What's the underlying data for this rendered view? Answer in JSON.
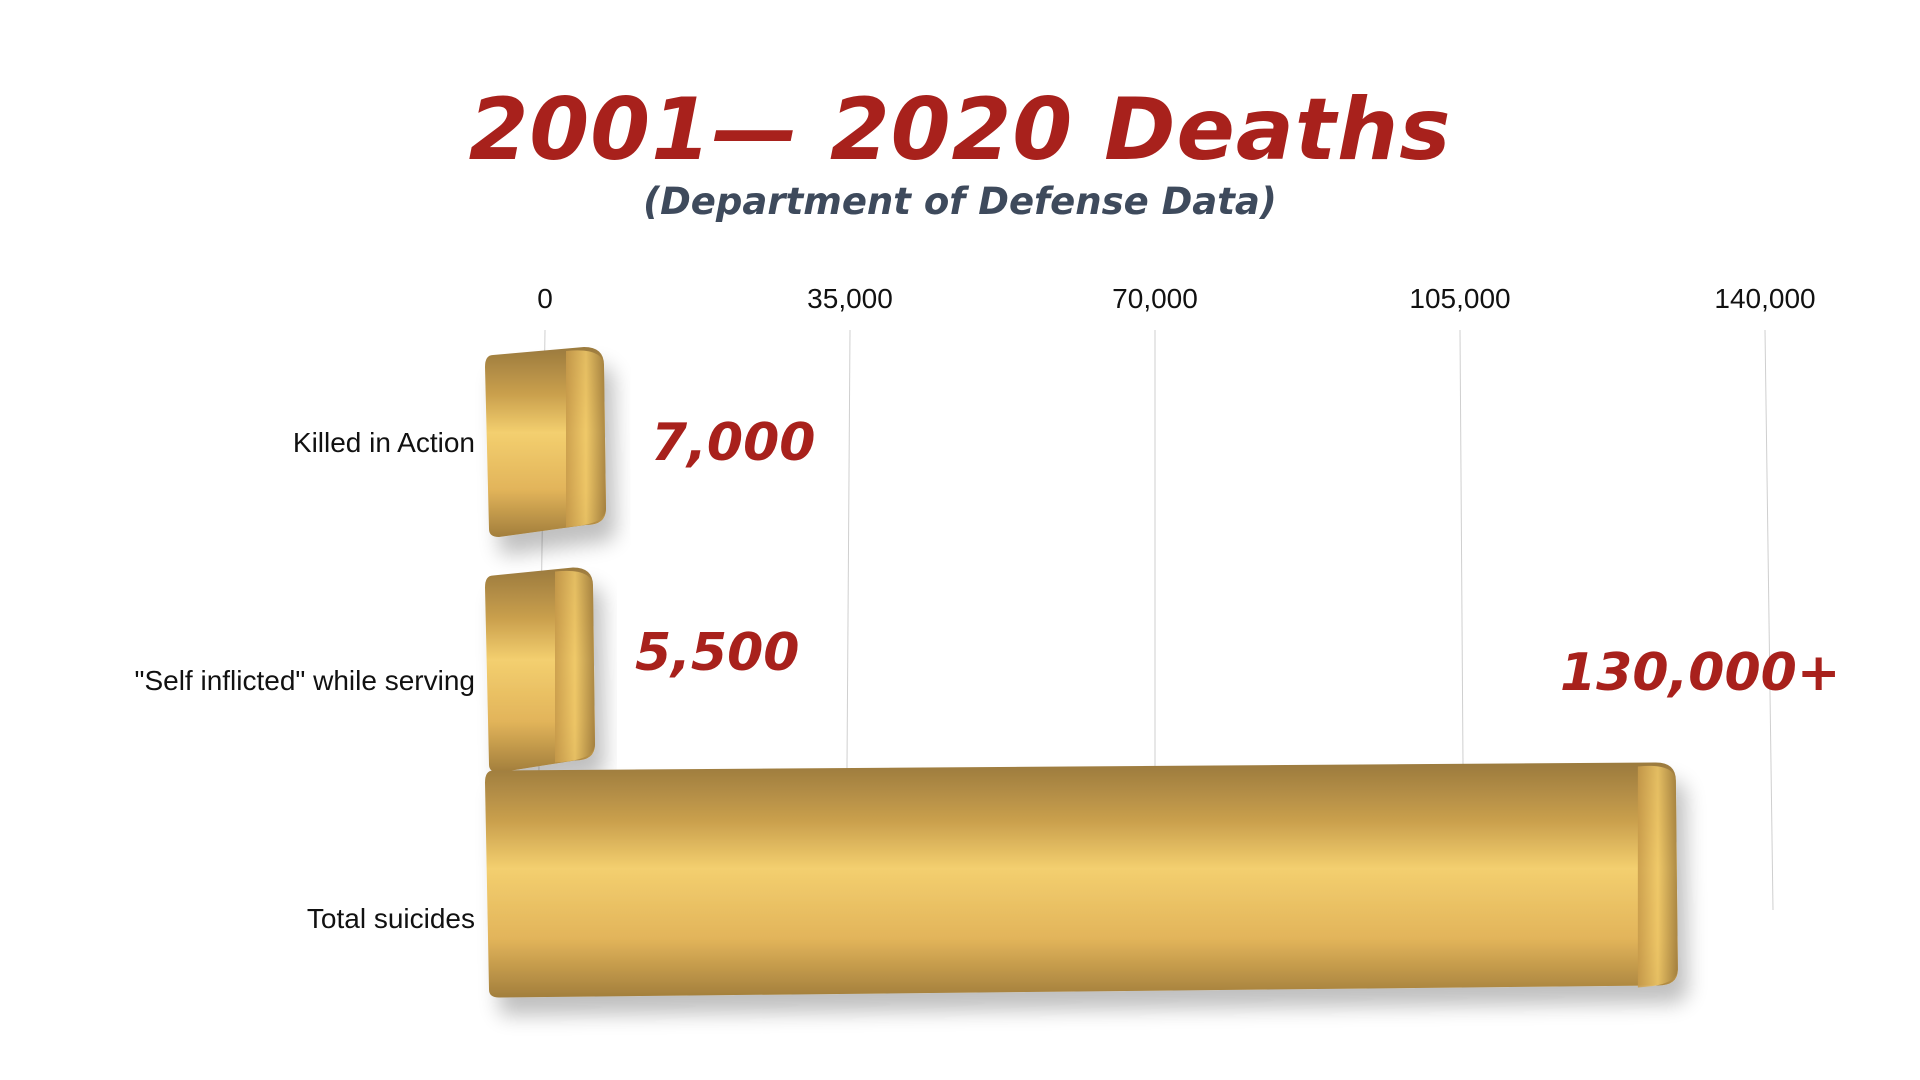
{
  "chart_data": {
    "type": "bar",
    "orientation": "horizontal",
    "title": "2001— 2020 Deaths",
    "subtitle": "(Department of Defense Data)",
    "categories": [
      "Killed in Action",
      "\"Self inflicted\" while serving",
      "Total suicides"
    ],
    "values": [
      7000,
      5500,
      130000
    ],
    "data_labels": [
      "7,000",
      "5,500",
      "130,000+"
    ],
    "x_ticks": [
      0,
      35000,
      70000,
      105000,
      140000
    ],
    "x_tick_labels": [
      "0",
      "35,000",
      "70,000",
      "105,000",
      "140,000"
    ],
    "xlim": [
      0,
      140000
    ],
    "grid": true,
    "colors": {
      "bar": "#e2b45a",
      "bar_dark": "#9b7a3e",
      "bar_light": "#f3cf6f",
      "title": "#a8211c",
      "subtitle": "#3e4a5c",
      "data_label": "#a8211c",
      "grid": "#cfcfcf"
    }
  }
}
